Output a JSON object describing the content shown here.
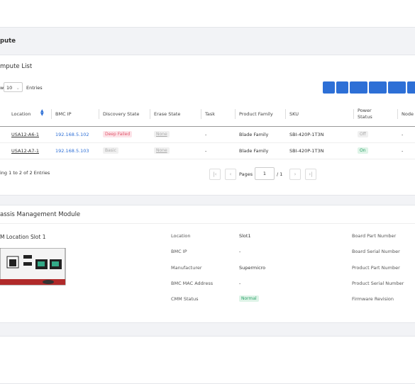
{
  "section": {
    "title": "pute"
  },
  "list": {
    "title": "mpute List",
    "show_prefix": "w",
    "page_size": "10",
    "entries_label": "Entries",
    "columns": [
      "Location",
      "BMC IP",
      "Discovery State",
      "Erase State",
      "Task",
      "Product Family",
      "SKU",
      "Power Status",
      "Node"
    ],
    "rows": [
      [
        "USA12-A6-1",
        "192.168.5.102",
        "Deep Failed",
        "None",
        "-",
        "Blade Family",
        "SBI-420P-1T3N",
        "Off",
        "-"
      ],
      [
        "USA12-A7-1",
        "192.168.5.103",
        "Basic",
        "None",
        "-",
        "Blade Family",
        "SBI-420P-1T3N",
        "On",
        "-"
      ]
    ],
    "footer": "ing 1 to 2 of 2 Entries",
    "pages_label": "Pages",
    "page": "1",
    "page_total": "/ 1"
  },
  "cmm": {
    "title": "assis Management Module",
    "slot_title": "M Location Slot 1",
    "fields": [
      {
        "label": "Location",
        "value": "Slot1"
      },
      {
        "label": "BMC IP",
        "value": "-"
      },
      {
        "label": "Manufacturer",
        "value": "Supermicro"
      },
      {
        "label": "BMC MAC Address",
        "value": "-"
      },
      {
        "label": "CMM Status",
        "value": "Normal"
      }
    ],
    "right_fields": [
      "Board Part Number",
      "Board Serial Number",
      "Product Part Number",
      "Product Serial Number",
      "Firmware Revision"
    ]
  }
}
